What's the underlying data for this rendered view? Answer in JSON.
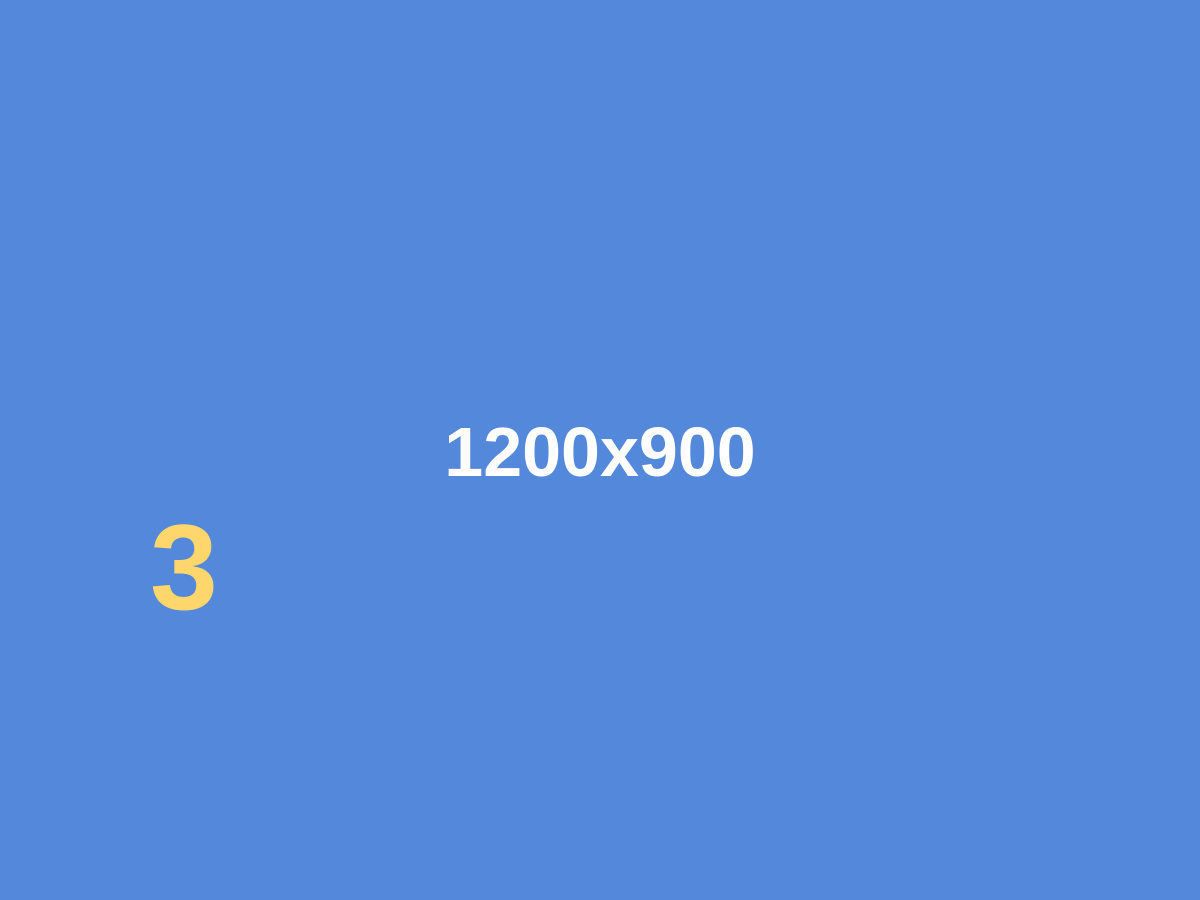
{
  "placeholder": {
    "dimensions_text": "1200x900",
    "number_text": "3"
  },
  "colors": {
    "background": "#5488db",
    "dimensions_text": "#ffffff",
    "number_text": "#ffd66b"
  }
}
